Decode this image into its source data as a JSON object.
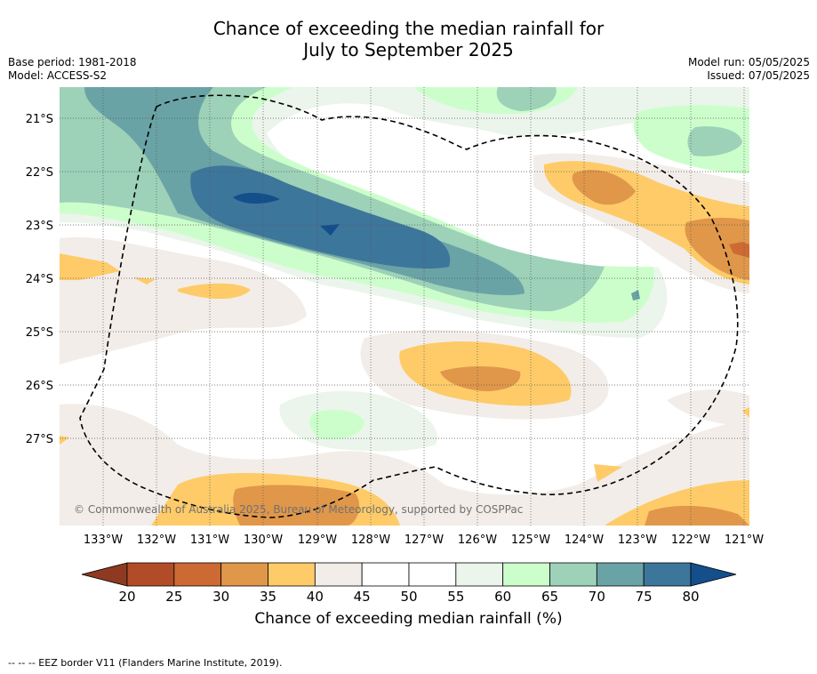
{
  "title_line1": "Chance of exceeding the median rainfall for",
  "title_line2": "July to September 2025",
  "base_period": "Base period: 1981-2018",
  "model": "Model: ACCESS-S2",
  "model_run": "Model run: 05/05/2025",
  "issued": "Issued: 07/05/2025",
  "copyright": "© Commonwealth of Australia 2025, Bureau of Meteorology, supported by COSPPac",
  "colorbar_label": "Chance of exceeding median rainfall (%)",
  "footer": "--  --  -- EEZ border V11 (Flanders Marine Institute, 2019).",
  "map": {
    "lon_labels": [
      "133°W",
      "132°W",
      "131°W",
      "130°W",
      "129°W",
      "128°W",
      "127°W",
      "126°W",
      "125°W",
      "124°W",
      "123°W",
      "122°W",
      "121°W"
    ],
    "lat_labels": [
      "21°S",
      "22°S",
      "23°S",
      "24°S",
      "25°S",
      "26°S",
      "27°S"
    ]
  },
  "colorbar": {
    "ticks": [
      "20",
      "25",
      "30",
      "35",
      "40",
      "45",
      "50",
      "55",
      "60",
      "65",
      "70",
      "75",
      "80"
    ],
    "colors": [
      "#b24c28",
      "#cd6a33",
      "#e0974a",
      "#fecb68",
      "#f2ede8",
      "#ffffff",
      "#ffffff",
      "#ebf5eb",
      "#ccfecb",
      "#9dd1b8",
      "#6aa3a5",
      "#3d769b"
    ],
    "under_color": "#8e3a22",
    "over_color": "#144f8c"
  }
}
